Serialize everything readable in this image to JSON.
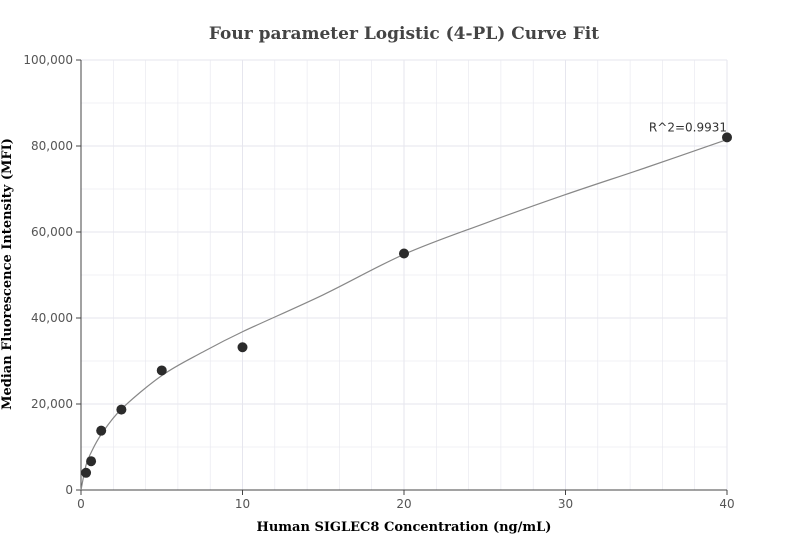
{
  "chart_data": {
    "type": "scatter",
    "title": "Four parameter Logistic (4-PL) Curve Fit",
    "xlabel": "Human SIGLEC8 Concentration (ng/mL)",
    "ylabel": "Median Fluorescence Intensity (MFI)",
    "xlim": [
      0,
      40
    ],
    "ylim": [
      0,
      100000
    ],
    "x_ticks": [
      0,
      10,
      20,
      30,
      40
    ],
    "x_tick_labels": [
      "0",
      "10",
      "20",
      "30",
      "40"
    ],
    "y_ticks": [
      0,
      20000,
      40000,
      60000,
      80000,
      100000
    ],
    "y_tick_labels": [
      "0",
      "20,000",
      "40,000",
      "60,000",
      "80,000",
      "100,000"
    ],
    "grid": true,
    "series": [
      {
        "kind": "points",
        "x": [
          0.3125,
          0.625,
          1.25,
          2.5,
          5,
          10,
          20,
          40
        ],
        "y": [
          4000,
          6700,
          13800,
          18700,
          27800,
          33200,
          55000,
          82000
        ]
      },
      {
        "kind": "fitted-curve",
        "x": [
          0,
          0.3125,
          0.625,
          1.25,
          2.5,
          5,
          7.5,
          10,
          15,
          20,
          25,
          30,
          35,
          40
        ],
        "y": [
          0,
          5800,
          8700,
          12900,
          18800,
          26600,
          32000,
          36800,
          45400,
          54800,
          62000,
          68700,
          75000,
          81500
        ]
      }
    ],
    "annotations": [
      {
        "text": "R^2=0.9931",
        "x": 40,
        "y": 82000
      }
    ],
    "colors": {
      "points": "#2b2b2b",
      "curve": "#888888",
      "grid": "#e6e6ee",
      "axis": "#444444"
    }
  }
}
